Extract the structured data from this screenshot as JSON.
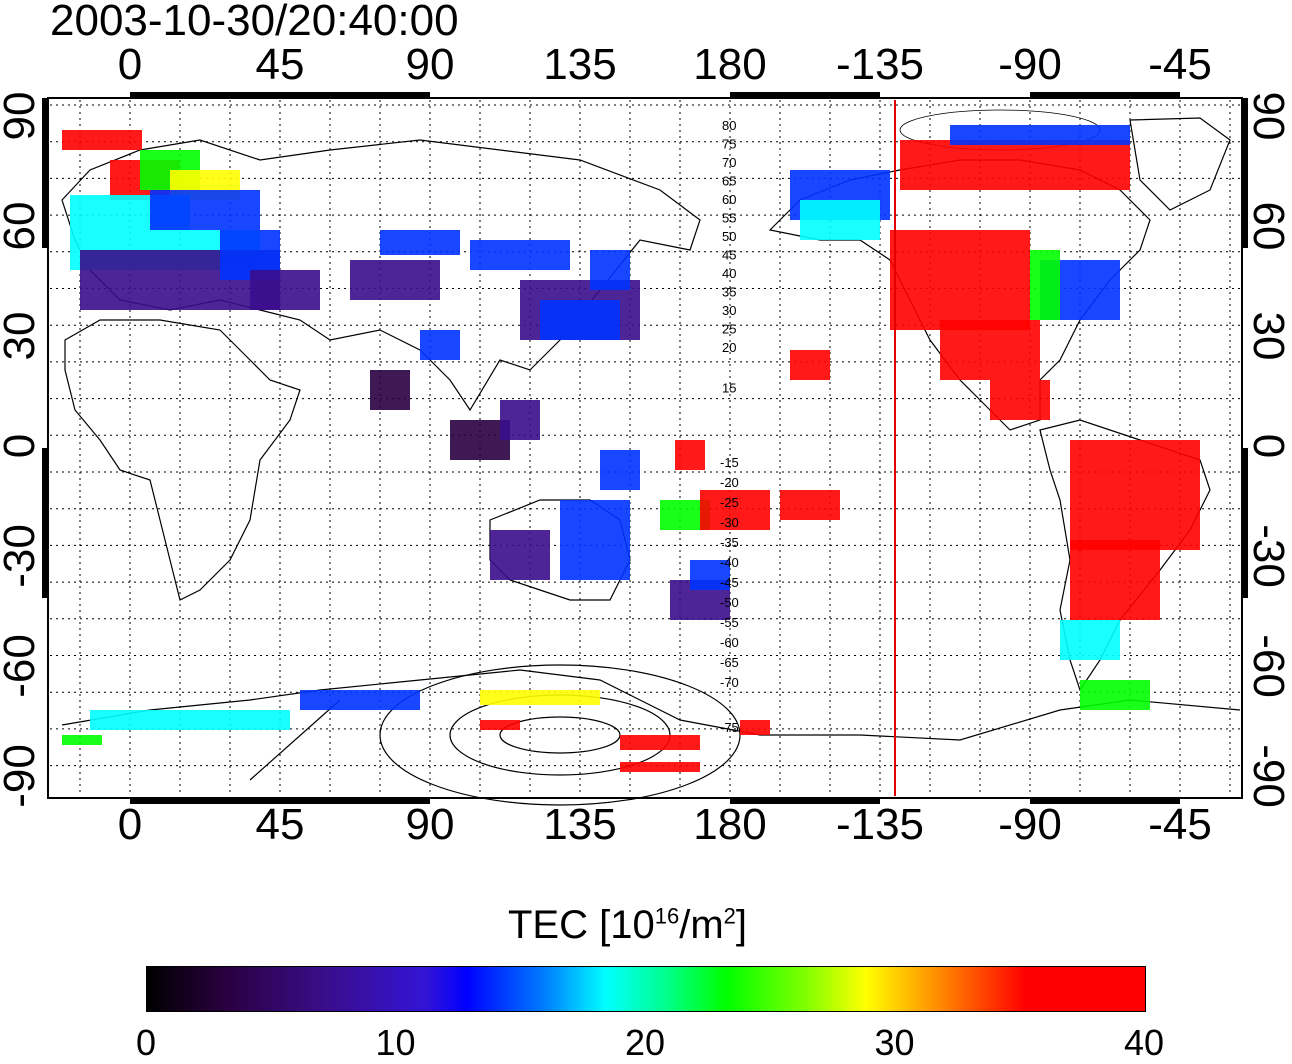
{
  "title": "2003-10-30/20:40:00",
  "axes": {
    "lon_ticks": [
      "0",
      "45",
      "90",
      "135",
      "180",
      "-135",
      "-90",
      "-45"
    ],
    "lat_ticks": [
      "90",
      "60",
      "30",
      "0",
      "-30",
      "-60",
      "-90"
    ],
    "red_meridian_lon": -131
  },
  "contour_labels_north": [
    "80",
    "75",
    "70",
    "65",
    "60",
    "55",
    "50",
    "45",
    "40",
    "35",
    "30",
    "25",
    "20",
    "15"
  ],
  "contour_labels_south": [
    "-15",
    "-20",
    "-25",
    "-30",
    "-35",
    "-40",
    "-45",
    "-50",
    "-55",
    "-60",
    "-65",
    "-70",
    "-75"
  ],
  "colorbar": {
    "title": "TEC  [10",
    "title_sup1": "16",
    "title_mid": "/m",
    "title_sup2": "2",
    "title_end": "]",
    "ticks": [
      "0",
      "10",
      "20",
      "30",
      "40"
    ],
    "min": 0,
    "max": 40
  },
  "colors": {
    "low": "#2a0040",
    "mid_low": "#3a0d8c",
    "blue": "#0033ff",
    "cyan": "#00ffff",
    "green": "#00ff00",
    "yellow": "#ffff00",
    "high": "#ff0000"
  }
}
